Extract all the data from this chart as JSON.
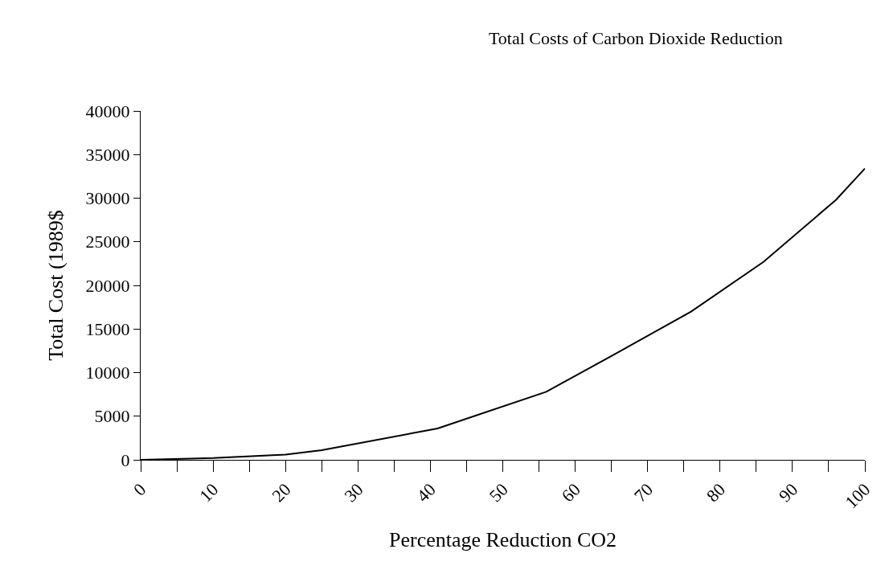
{
  "chart_data": {
    "type": "line",
    "title": "Total Costs of Carbon Dioxide Reduction",
    "xlabel": "Percentage Reduction CO2",
    "ylabel": "Total Cost (1989$",
    "x": [
      0,
      10,
      20,
      25,
      41,
      56,
      65,
      76,
      86,
      96,
      100
    ],
    "series": [
      {
        "color": "#000000",
        "values": [
          0,
          200,
          600,
          1100,
          3600,
          7800,
          11900,
          17000,
          22700,
          29800,
          33400
        ]
      }
    ],
    "xlim": [
      0,
      100
    ],
    "xticks": [
      0,
      {
        "value": 5,
        "label": null
      },
      10,
      {
        "value": 15,
        "label": null
      },
      20,
      {
        "value": 25,
        "label": null
      },
      30,
      {
        "value": 35,
        "label": null
      },
      40,
      {
        "value": 45,
        "label": null
      },
      50,
      {
        "value": 55,
        "label": null
      },
      60,
      {
        "value": 65,
        "label": null
      },
      70,
      {
        "value": 75,
        "label": null
      },
      80,
      {
        "value": 85,
        "label": null
      },
      90,
      {
        "value": 95,
        "label": null
      },
      100
    ],
    "ylim": [
      0,
      40000
    ],
    "yticks": [
      0,
      5000,
      10000,
      15000,
      20000,
      25000,
      30000,
      35000,
      40000
    ],
    "legend": false,
    "marker": "none",
    "line_style": "solid"
  }
}
